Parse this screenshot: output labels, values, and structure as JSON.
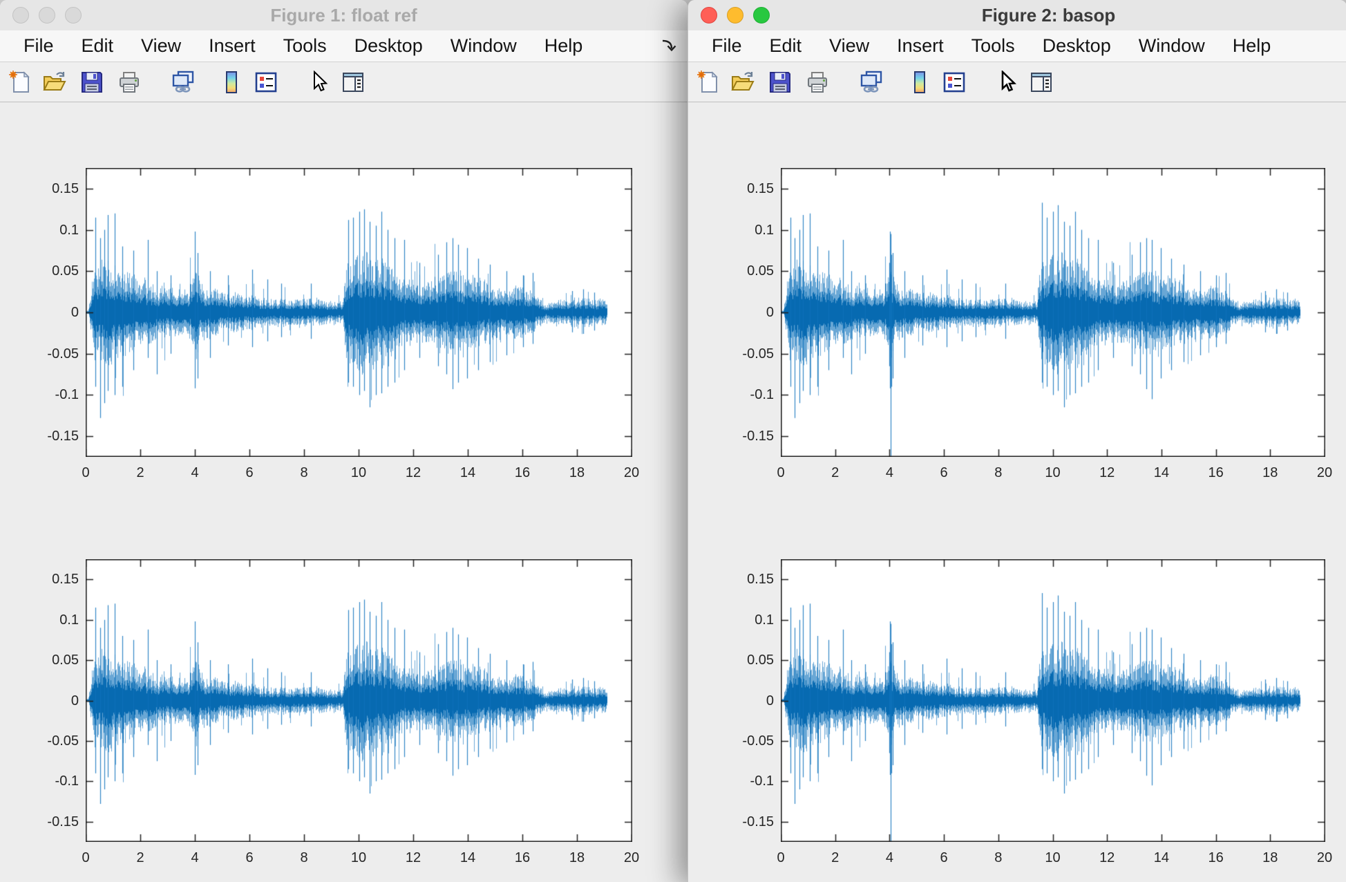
{
  "windows": [
    {
      "title": "Figure 1: float ref",
      "active": false,
      "traffic_lights": [
        "close",
        "minimize",
        "zoom"
      ],
      "menu": {
        "items": [
          "File",
          "Edit",
          "View",
          "Insert",
          "Tools",
          "Desktop",
          "Window",
          "Help"
        ],
        "overflow_arrow": true
      },
      "toolbar": {
        "icons": [
          "new-figure",
          "open-file",
          "save-figure",
          "print-figure",
          "link-plot",
          "insert-colorbar",
          "insert-legend",
          "edit-plot",
          "plot-browser"
        ]
      },
      "chart": 0
    },
    {
      "title": "Figure 2: basop",
      "active": true,
      "traffic_lights": [
        "close",
        "minimize",
        "zoom"
      ],
      "menu": {
        "items": [
          "File",
          "Edit",
          "View",
          "Insert",
          "Tools",
          "Desktop",
          "Window",
          "Help"
        ],
        "overflow_arrow": false
      },
      "toolbar": {
        "icons": [
          "new-figure",
          "open-file",
          "save-figure",
          "print-figure",
          "link-plot",
          "insert-colorbar",
          "insert-legend",
          "edit-plot",
          "plot-browser"
        ]
      },
      "chart": 1
    }
  ],
  "colors": {
    "waveform_blue": "#0d71ba",
    "axes": "#1f1f1f",
    "figure_background": "#ededed",
    "traffic_red": "#ff5f57",
    "traffic_yellow": "#febc2e",
    "traffic_green": "#28c840"
  },
  "chart_data": [
    {
      "type": "line",
      "figure_title": "Figure 1: float ref",
      "subplots": 2,
      "series": [
        {
          "name": "audio waveform",
          "color": "#0d71ba"
        }
      ],
      "xlabel": "",
      "ylabel": "",
      "xlim": [
        0,
        20
      ],
      "ylim": [
        -0.175,
        0.175
      ],
      "x_ticks": [
        "0",
        "2",
        "4",
        "6",
        "8",
        "10",
        "12",
        "14",
        "16",
        "18",
        "20"
      ],
      "y_ticks": [
        "0.15",
        "0.1",
        "0.05",
        "0",
        "-0.05",
        "-0.1",
        "-0.15"
      ],
      "grid": false,
      "noise_seed": 77,
      "envelope": [
        [
          0,
          0
        ],
        [
          0.12,
          0.004
        ],
        [
          0.22,
          0.03
        ],
        [
          0.32,
          0.055
        ],
        [
          0.5,
          0.058
        ],
        [
          0.75,
          0.062
        ],
        [
          1.0,
          0.058
        ],
        [
          1.25,
          0.05
        ],
        [
          1.55,
          0.043
        ],
        [
          1.85,
          0.037
        ],
        [
          2.15,
          0.035
        ],
        [
          2.5,
          0.03
        ],
        [
          2.9,
          0.027
        ],
        [
          3.3,
          0.025
        ],
        [
          3.7,
          0.025
        ],
        [
          3.9,
          0.034
        ],
        [
          4.05,
          0.046
        ],
        [
          4.2,
          0.033
        ],
        [
          4.5,
          0.026
        ],
        [
          4.9,
          0.022
        ],
        [
          5.4,
          0.021
        ],
        [
          5.9,
          0.019
        ],
        [
          6.4,
          0.016
        ],
        [
          7.0,
          0.0145
        ],
        [
          7.6,
          0.014
        ],
        [
          8.2,
          0.0145
        ],
        [
          8.8,
          0.013
        ],
        [
          9.3,
          0.0125
        ],
        [
          9.42,
          0.013
        ],
        [
          9.5,
          0.055
        ],
        [
          9.7,
          0.063
        ],
        [
          10.0,
          0.067
        ],
        [
          10.3,
          0.065
        ],
        [
          10.6,
          0.062
        ],
        [
          10.9,
          0.059
        ],
        [
          11.15,
          0.052
        ],
        [
          11.4,
          0.04
        ],
        [
          11.7,
          0.035
        ],
        [
          12.0,
          0.032
        ],
        [
          12.4,
          0.032
        ],
        [
          12.7,
          0.037
        ],
        [
          13.0,
          0.043
        ],
        [
          13.35,
          0.047
        ],
        [
          13.7,
          0.044
        ],
        [
          14.1,
          0.04
        ],
        [
          14.5,
          0.036
        ],
        [
          14.9,
          0.032
        ],
        [
          15.3,
          0.029
        ],
        [
          15.7,
          0.027
        ],
        [
          16.1,
          0.025
        ],
        [
          16.45,
          0.022
        ],
        [
          16.7,
          0.013
        ],
        [
          16.85,
          0.007
        ],
        [
          17.0,
          0.011
        ],
        [
          17.3,
          0.014
        ],
        [
          17.7,
          0.016
        ],
        [
          18.1,
          0.016
        ],
        [
          18.5,
          0.015
        ],
        [
          18.9,
          0.014
        ],
        [
          19.05,
          0.012
        ],
        [
          19.1,
          0
        ],
        [
          20,
          0
        ]
      ],
      "spikes": [
        [
          0.35,
          0.115,
          -0.09
        ],
        [
          0.52,
          0.09,
          -0.128
        ],
        [
          0.68,
          0.1,
          -0.11
        ],
        [
          0.8,
          0.118,
          -0.095
        ],
        [
          1.06,
          0.12,
          -0.1
        ],
        [
          1.35,
          0.08,
          -0.09
        ],
        [
          1.75,
          0.075,
          -0.07
        ],
        [
          2.28,
          0.088,
          -0.055
        ],
        [
          2.6,
          0.05,
          -0.075
        ],
        [
          3.1,
          0.045,
          -0.05
        ],
        [
          4.0,
          0.098,
          -0.092
        ],
        [
          4.1,
          0.072,
          -0.08
        ],
        [
          4.55,
          0.05,
          -0.055
        ],
        [
          5.2,
          0.045,
          -0.04
        ],
        [
          6.1,
          0.052,
          -0.042
        ],
        [
          6.65,
          0.04,
          -0.035
        ],
        [
          7.15,
          0.035,
          -0.03
        ],
        [
          8.25,
          0.035,
          -0.032
        ],
        [
          9.6,
          0.112,
          -0.085
        ],
        [
          9.78,
          0.115,
          -0.09
        ],
        [
          10.0,
          0.122,
          -0.1
        ],
        [
          10.18,
          0.125,
          -0.095
        ],
        [
          10.4,
          0.11,
          -0.115
        ],
        [
          10.62,
          0.105,
          -0.1
        ],
        [
          10.82,
          0.122,
          -0.098
        ],
        [
          11.05,
          0.1,
          -0.09
        ],
        [
          11.3,
          0.09,
          -0.085
        ],
        [
          11.65,
          0.088,
          -0.07
        ],
        [
          12.2,
          0.06,
          -0.055
        ],
        [
          12.9,
          0.07,
          -0.065
        ],
        [
          13.2,
          0.085,
          -0.075
        ],
        [
          13.42,
          0.09,
          -0.093
        ],
        [
          13.62,
          0.082,
          -0.085
        ],
        [
          13.95,
          0.078,
          -0.08
        ],
        [
          14.35,
          0.065,
          -0.07
        ],
        [
          14.8,
          0.058,
          -0.06
        ],
        [
          15.4,
          0.05,
          -0.052
        ],
        [
          16.0,
          0.045,
          -0.042
        ],
        [
          16.35,
          0.048,
          -0.038
        ],
        [
          17.8,
          0.026,
          -0.024
        ],
        [
          18.2,
          0.028,
          -0.026
        ],
        [
          18.6,
          0.024,
          -0.022
        ]
      ]
    },
    {
      "type": "line",
      "figure_title": "Figure 2: basop",
      "subplots": 2,
      "series": [
        {
          "name": "audio waveform",
          "color": "#0d71ba"
        }
      ],
      "xlabel": "",
      "ylabel": "",
      "xlim": [
        0,
        20
      ],
      "ylim": [
        -0.175,
        0.175
      ],
      "x_ticks": [
        "0",
        "2",
        "4",
        "6",
        "8",
        "10",
        "12",
        "14",
        "16",
        "18",
        "20"
      ],
      "y_ticks": [
        "0.15",
        "0.1",
        "0.05",
        "0",
        "-0.05",
        "-0.1",
        "-0.15"
      ],
      "grid": false,
      "noise_seed": 77,
      "envelope": [
        [
          0,
          0
        ],
        [
          0.12,
          0.004
        ],
        [
          0.22,
          0.03
        ],
        [
          0.32,
          0.055
        ],
        [
          0.5,
          0.058
        ],
        [
          0.75,
          0.062
        ],
        [
          1.0,
          0.058
        ],
        [
          1.25,
          0.05
        ],
        [
          1.55,
          0.043
        ],
        [
          1.85,
          0.037
        ],
        [
          2.15,
          0.035
        ],
        [
          2.5,
          0.03
        ],
        [
          2.9,
          0.027
        ],
        [
          3.3,
          0.025
        ],
        [
          3.7,
          0.025
        ],
        [
          3.9,
          0.034
        ],
        [
          4.05,
          0.046
        ],
        [
          4.2,
          0.033
        ],
        [
          4.5,
          0.026
        ],
        [
          4.9,
          0.022
        ],
        [
          5.4,
          0.021
        ],
        [
          5.9,
          0.019
        ],
        [
          6.4,
          0.016
        ],
        [
          7.0,
          0.0145
        ],
        [
          7.6,
          0.014
        ],
        [
          8.2,
          0.0145
        ],
        [
          8.8,
          0.013
        ],
        [
          9.3,
          0.0125
        ],
        [
          9.42,
          0.013
        ],
        [
          9.5,
          0.055
        ],
        [
          9.7,
          0.063
        ],
        [
          10.0,
          0.067
        ],
        [
          10.3,
          0.065
        ],
        [
          10.6,
          0.062
        ],
        [
          10.9,
          0.059
        ],
        [
          11.15,
          0.052
        ],
        [
          11.4,
          0.04
        ],
        [
          11.7,
          0.035
        ],
        [
          12.0,
          0.032
        ],
        [
          12.4,
          0.032
        ],
        [
          12.7,
          0.037
        ],
        [
          13.0,
          0.043
        ],
        [
          13.35,
          0.047
        ],
        [
          13.7,
          0.044
        ],
        [
          14.1,
          0.04
        ],
        [
          14.5,
          0.036
        ],
        [
          14.9,
          0.032
        ],
        [
          15.3,
          0.029
        ],
        [
          15.7,
          0.027
        ],
        [
          16.1,
          0.025
        ],
        [
          16.45,
          0.022
        ],
        [
          16.7,
          0.013
        ],
        [
          16.85,
          0.007
        ],
        [
          17.0,
          0.011
        ],
        [
          17.3,
          0.014
        ],
        [
          17.7,
          0.016
        ],
        [
          18.1,
          0.016
        ],
        [
          18.5,
          0.015
        ],
        [
          18.9,
          0.014
        ],
        [
          19.05,
          0.012
        ],
        [
          19.1,
          0
        ],
        [
          20,
          0
        ]
      ],
      "spikes": [
        [
          0.35,
          0.115,
          -0.09
        ],
        [
          0.52,
          0.09,
          -0.128
        ],
        [
          0.68,
          0.1,
          -0.11
        ],
        [
          0.8,
          0.118,
          -0.095
        ],
        [
          1.06,
          0.12,
          -0.1
        ],
        [
          1.35,
          0.08,
          -0.09
        ],
        [
          1.75,
          0.075,
          -0.07
        ],
        [
          2.28,
          0.088,
          -0.055
        ],
        [
          2.6,
          0.05,
          -0.075
        ],
        [
          3.1,
          0.045,
          -0.05
        ],
        [
          3.99,
          0.06,
          -0.065
        ],
        [
          4.03,
          0.095,
          -0.19
        ],
        [
          4.07,
          0.07,
          -0.09
        ],
        [
          4.0,
          0.098,
          -0.092
        ],
        [
          4.1,
          0.072,
          -0.08
        ],
        [
          4.55,
          0.05,
          -0.055
        ],
        [
          5.2,
          0.045,
          -0.04
        ],
        [
          6.1,
          0.052,
          -0.042
        ],
        [
          6.65,
          0.04,
          -0.035
        ],
        [
          7.15,
          0.035,
          -0.03
        ],
        [
          8.25,
          0.035,
          -0.032
        ],
        [
          9.6,
          0.133,
          -0.085
        ],
        [
          9.78,
          0.115,
          -0.09
        ],
        [
          10.0,
          0.122,
          -0.1
        ],
        [
          10.18,
          0.13,
          -0.095
        ],
        [
          10.4,
          0.11,
          -0.115
        ],
        [
          10.62,
          0.105,
          -0.1
        ],
        [
          10.82,
          0.122,
          -0.098
        ],
        [
          11.05,
          0.1,
          -0.09
        ],
        [
          11.3,
          0.09,
          -0.085
        ],
        [
          11.65,
          0.088,
          -0.07
        ],
        [
          12.2,
          0.06,
          -0.055
        ],
        [
          12.9,
          0.07,
          -0.065
        ],
        [
          13.2,
          0.085,
          -0.075
        ],
        [
          13.42,
          0.09,
          -0.093
        ],
        [
          13.62,
          0.088,
          -0.105
        ],
        [
          13.95,
          0.078,
          -0.08
        ],
        [
          14.35,
          0.065,
          -0.07
        ],
        [
          14.8,
          0.058,
          -0.06
        ],
        [
          15.4,
          0.05,
          -0.052
        ],
        [
          16.0,
          0.045,
          -0.042
        ],
        [
          16.35,
          0.048,
          -0.038
        ],
        [
          17.8,
          0.026,
          -0.024
        ],
        [
          18.2,
          0.028,
          -0.026
        ],
        [
          18.6,
          0.024,
          -0.022
        ]
      ]
    }
  ]
}
